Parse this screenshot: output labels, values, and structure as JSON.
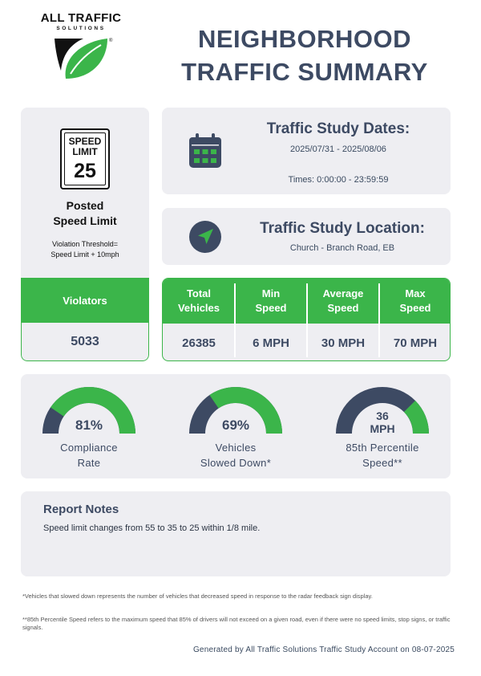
{
  "logo": {
    "brand": "ALL TRAFFIC",
    "sub": "SOLUTIONS",
    "mark": "®"
  },
  "title": {
    "line1": "NEIGHBORHOOD",
    "line2": "TRAFFIC SUMMARY"
  },
  "speed_limit": {
    "sign_word1": "SPEED",
    "sign_word2": "LIMIT",
    "sign_value": "25",
    "posted_line1": "Posted",
    "posted_line2": "Speed Limit",
    "threshold_line1": "Violation Threshold=",
    "threshold_line2": "Speed Limit + 10mph",
    "violators_label": "Violators",
    "violators_value": "5033"
  },
  "dates": {
    "icon": "calendar-icon",
    "title": "Traffic Study Dates:",
    "range": "2025/07/31 - 2025/08/06",
    "times": "Times: 0:00:00 - 23:59:59"
  },
  "location": {
    "icon": "navigation-arrow-icon",
    "title": "Traffic Study Location:",
    "value": "Church - Branch Road, EB"
  },
  "stats": [
    {
      "label": "Total\nVehicles",
      "value": "26385"
    },
    {
      "label": "Min\nSpeed",
      "value": "6 MPH"
    },
    {
      "label": "Average\nSpeed",
      "value": "30 MPH"
    },
    {
      "label": "Max\nSpeed",
      "value": "70 MPH"
    }
  ],
  "gauges": [
    {
      "value": "81%",
      "fraction": 0.81,
      "label_line1": "Compliance",
      "label_line2": "Rate"
    },
    {
      "value": "69%",
      "fraction": 0.69,
      "label_line1": "Vehicles",
      "label_line2": "Slowed Down*"
    },
    {
      "value_line1": "36",
      "value_line2": "MPH",
      "fraction": 0.25,
      "label_line1": "85th Percentile",
      "label_line2": "Speed**"
    }
  ],
  "notes": {
    "title": "Report Notes",
    "text": "Speed limit changes from 55 to 35 to 25 within 1/8 mile."
  },
  "footnotes": [
    "*Vehicles that slowed down represents the number of vehicles that decreased speed in response to the radar feedback sign display.",
    "**85th Percentile Speed refers to the maximum speed that 85% of drivers will not exceed on a given road, even if there were no speed limits, stop signs, or traffic signals."
  ],
  "generated": "Generated by All Traffic Solutions Traffic Study Account on 08-07-2025",
  "colors": {
    "navy": "#3d4a63",
    "green": "#3bb54a",
    "card_bg": "#eeeef2"
  }
}
